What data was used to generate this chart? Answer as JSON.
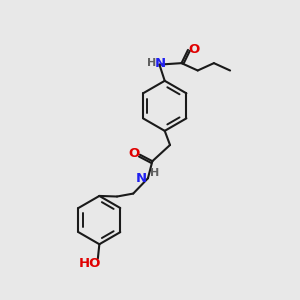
{
  "bg_color": "#e8e8e8",
  "bond_color": "#1a1a1a",
  "N_color": "#2020f0",
  "O_color": "#e00000",
  "H_color": "#606060",
  "lw": 1.5,
  "lw_inner": 1.4,
  "font_size_atom": 9.5,
  "font_size_h": 8.0,
  "xlim": [
    0,
    10
  ],
  "ylim": [
    0,
    10
  ]
}
